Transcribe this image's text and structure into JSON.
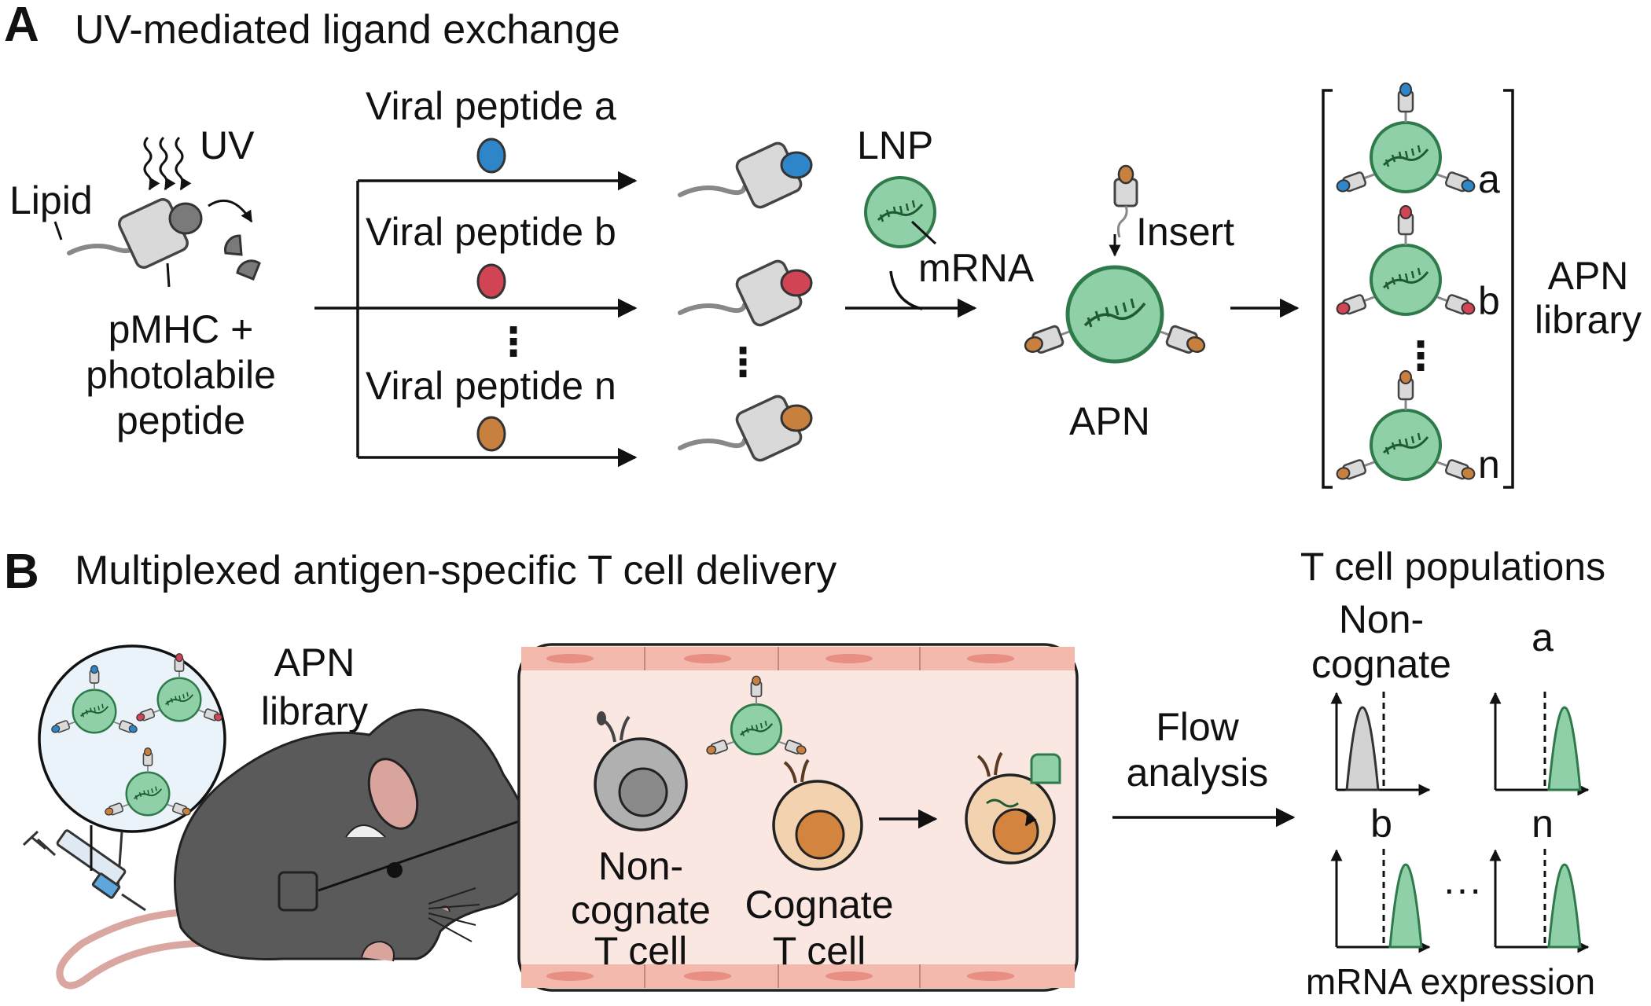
{
  "panel_a": {
    "letter": "A",
    "title": "UV-mediated ligand exchange",
    "uv": "UV",
    "lipid": "Lipid",
    "pmhc_lines": [
      "pMHC +",
      "photolabile",
      "peptide"
    ],
    "peptides": [
      "Viral peptide a",
      "Viral peptide b",
      "Viral peptide n"
    ],
    "ellipsis": "⋮",
    "lnp": "LNP",
    "mrna": "mRNA",
    "insert": "Insert",
    "apn": "APN",
    "library_items": [
      "a",
      "b",
      "n"
    ],
    "library_lines": [
      "APN",
      "library"
    ]
  },
  "panel_b": {
    "letter": "B",
    "title": "Multiplexed antigen-specific T cell delivery",
    "apn_library_lines": [
      "APN",
      "library"
    ],
    "noncognate_lines": [
      "Non-",
      "cognate",
      "T cell"
    ],
    "cognate_lines": [
      "Cognate",
      "T cell"
    ],
    "flow_lines": [
      "Flow",
      "analysis"
    ],
    "populations_title": "T cell populations",
    "pop_noncognate_lines": [
      "Non-",
      "cognate"
    ],
    "pop_labels": [
      "a",
      "b",
      "n"
    ],
    "hdots": "···",
    "x_axis": "mRNA expression"
  },
  "colors": {
    "blue": "#2e86c8",
    "red": "#d04454",
    "orange": "#c8803e",
    "green_fill": "#8fd0a8",
    "green_stroke": "#2f7a4a",
    "mhc_fill": "#d9d9d9",
    "mhc_stroke": "#444444",
    "vessel_fill": "#fbe7e1",
    "vessel_wall": "#f2b9ac",
    "mouse": "#5a5a5a",
    "tcell_grey": "#b0b0b0",
    "tcell_tan": "#f3d2b0",
    "nucleus_tan": "#d3843e",
    "library_bg": "#eaf2fa"
  }
}
